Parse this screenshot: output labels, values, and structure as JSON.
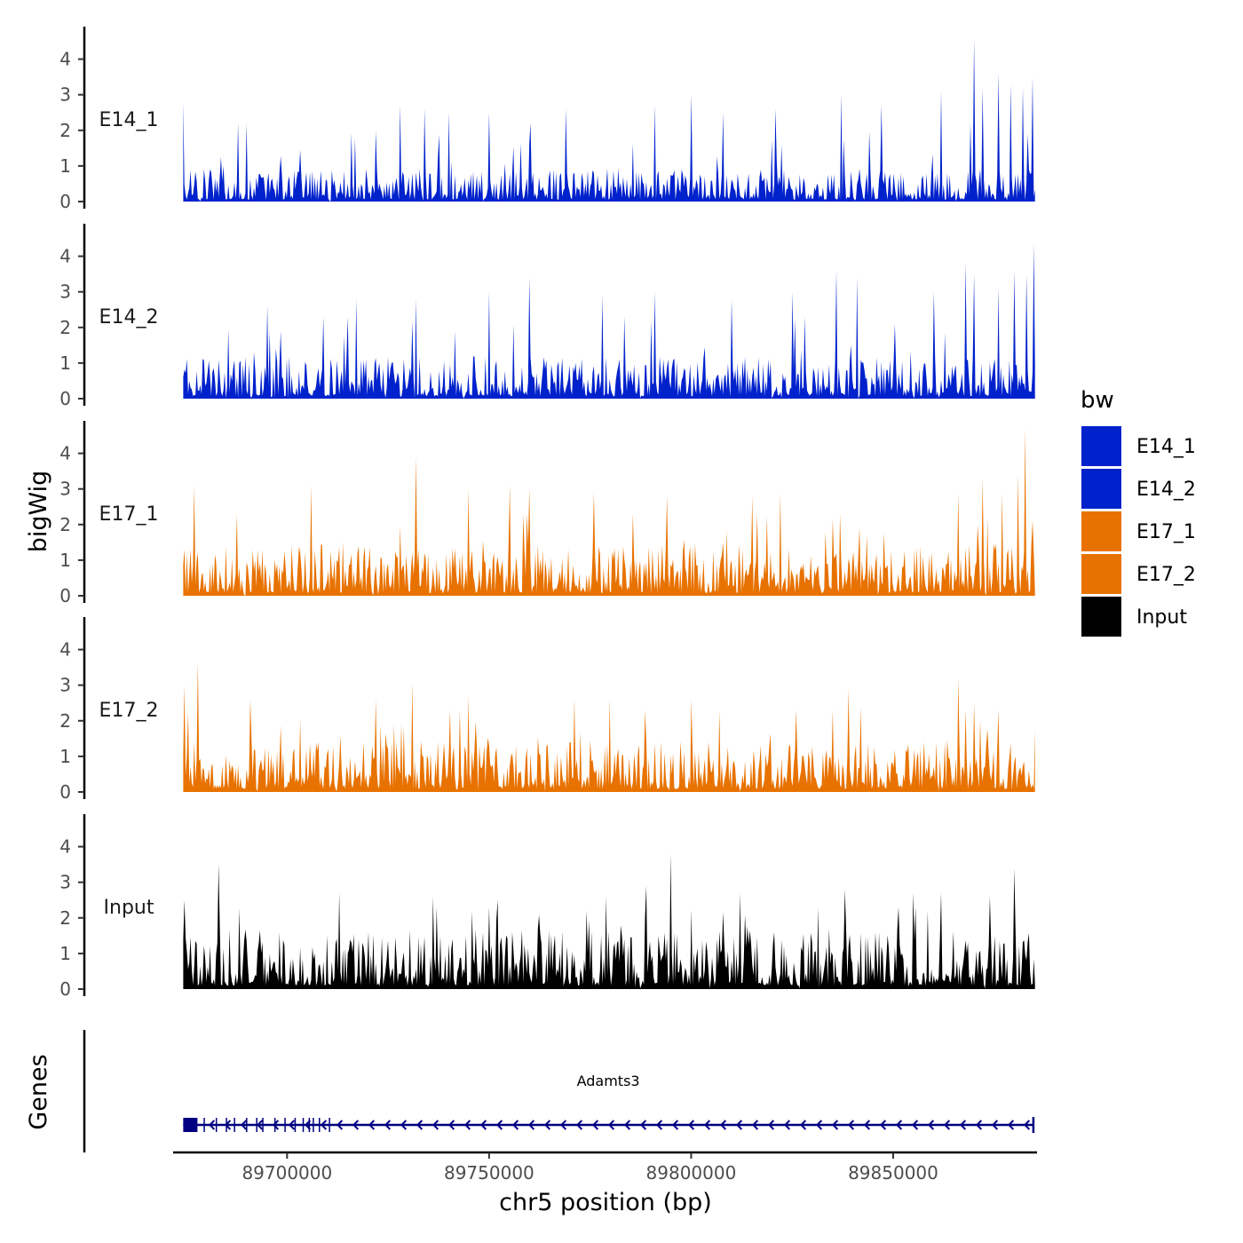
{
  "chart_data": {
    "type": "area",
    "xlabel": "chr5 position (bp)",
    "ylabel": "bigWig",
    "gene_track_label": "Genes",
    "xlim": [
      89671800,
      89885600
    ],
    "xticks": [
      89700000,
      89750000,
      89800000,
      89850000
    ],
    "xtick_labels": [
      "89700000",
      "89750000",
      "89800000",
      "89850000"
    ],
    "ylim": [
      0,
      4.8
    ],
    "yticks": [
      0,
      1,
      2,
      3,
      4
    ],
    "ytick_labels": [
      "0",
      "1",
      "2",
      "3",
      "4"
    ],
    "data_start": 89674300,
    "data_end": 89885100,
    "bins": 700,
    "series": [
      {
        "name": "E14_1",
        "color": "#0022CC",
        "baseline": 0.55,
        "max": 4.55,
        "peaks": [
          [
            89674300,
            2.8
          ],
          [
            89688000,
            2.2
          ],
          [
            89690000,
            2.2
          ],
          [
            89728000,
            2.7
          ],
          [
            89734000,
            2.6
          ],
          [
            89740000,
            2.5
          ],
          [
            89750000,
            2.5
          ],
          [
            89769000,
            2.6
          ],
          [
            89791000,
            2.7
          ],
          [
            89800000,
            3.0
          ],
          [
            89808000,
            2.5
          ],
          [
            89821000,
            2.6
          ],
          [
            89837000,
            3.0
          ],
          [
            89847000,
            2.7
          ],
          [
            89862000,
            3.1
          ],
          [
            89870000,
            4.55
          ],
          [
            89872000,
            3.2
          ],
          [
            89876000,
            3.6
          ],
          [
            89879000,
            3.3
          ],
          [
            89882000,
            3.2
          ],
          [
            89884500,
            3.5
          ]
        ]
      },
      {
        "name": "E14_2",
        "color": "#0022CC",
        "baseline": 0.7,
        "max": 4.35,
        "peaks": [
          [
            89695000,
            2.6
          ],
          [
            89717000,
            2.8
          ],
          [
            89732000,
            2.8
          ],
          [
            89750000,
            3.0
          ],
          [
            89760000,
            3.4
          ],
          [
            89778000,
            2.9
          ],
          [
            89791000,
            3.0
          ],
          [
            89810000,
            2.8
          ],
          [
            89825000,
            3.0
          ],
          [
            89836000,
            3.6
          ],
          [
            89841000,
            3.4
          ],
          [
            89860000,
            3.0
          ],
          [
            89868000,
            3.8
          ],
          [
            89870000,
            3.5
          ],
          [
            89876000,
            3.1
          ],
          [
            89880000,
            3.6
          ],
          [
            89883000,
            3.5
          ],
          [
            89884800,
            4.35
          ]
        ]
      },
      {
        "name": "E17_1",
        "color": "#E87200",
        "baseline": 0.85,
        "max": 4.7,
        "peaks": [
          [
            89677000,
            3.1
          ],
          [
            89706000,
            3.1
          ],
          [
            89732000,
            3.9
          ],
          [
            89745000,
            3.0
          ],
          [
            89755000,
            3.1
          ],
          [
            89760000,
            3.0
          ],
          [
            89776000,
            2.9
          ],
          [
            89794000,
            2.8
          ],
          [
            89815000,
            2.8
          ],
          [
            89822000,
            2.9
          ],
          [
            89866000,
            2.9
          ],
          [
            89872000,
            3.3
          ],
          [
            89877000,
            2.9
          ],
          [
            89881000,
            3.4
          ],
          [
            89882600,
            4.7
          ],
          [
            89884500,
            2.1
          ]
        ]
      },
      {
        "name": "E17_2",
        "color": "#E87200",
        "baseline": 0.85,
        "max": 3.65,
        "peaks": [
          [
            89674500,
            3.0
          ],
          [
            89678000,
            3.65
          ],
          [
            89691000,
            2.6
          ],
          [
            89722000,
            2.6
          ],
          [
            89731000,
            3.1
          ],
          [
            89745000,
            2.7
          ],
          [
            89771000,
            2.6
          ],
          [
            89780000,
            2.6
          ],
          [
            89800000,
            2.6
          ],
          [
            89839000,
            2.9
          ],
          [
            89842000,
            2.4
          ],
          [
            89866000,
            3.2
          ],
          [
            89870000,
            2.5
          ],
          [
            89876000,
            2.3
          ]
        ]
      },
      {
        "name": "Input",
        "color": "#000000",
        "baseline": 1.0,
        "max": 3.8,
        "peaks": [
          [
            89674500,
            2.5
          ],
          [
            89683000,
            3.5
          ],
          [
            89713000,
            2.7
          ],
          [
            89736000,
            2.6
          ],
          [
            89752000,
            2.5
          ],
          [
            89779000,
            2.6
          ],
          [
            89789000,
            2.9
          ],
          [
            89795000,
            3.8
          ],
          [
            89812000,
            2.7
          ],
          [
            89838000,
            2.8
          ],
          [
            89855000,
            2.7
          ],
          [
            89862000,
            2.7
          ],
          [
            89874000,
            2.6
          ],
          [
            89880000,
            3.4
          ]
        ]
      }
    ],
    "legend": {
      "title": "bw",
      "position": "right",
      "entries": [
        {
          "label": "E14_1",
          "color": "#0022CC"
        },
        {
          "label": "E14_2",
          "color": "#0022CC"
        },
        {
          "label": "E17_1",
          "color": "#E87200"
        },
        {
          "label": "E17_2",
          "color": "#E87200"
        },
        {
          "label": "Input",
          "color": "#000000"
        }
      ]
    },
    "gene": {
      "name": "Adamts3",
      "start": 89674300,
      "end": 89884700,
      "strand": "-",
      "color": "#000080",
      "exons": [
        89675000,
        89679500,
        89682500,
        89685000,
        89687000,
        89690000,
        89692500,
        89694000,
        89697000,
        89699500,
        89702000,
        89704000,
        89705500,
        89706500,
        89708000,
        89710500
      ]
    }
  }
}
